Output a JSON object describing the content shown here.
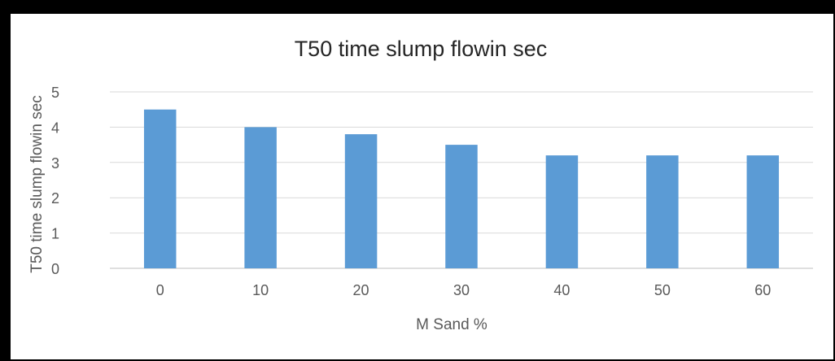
{
  "chart_data": {
    "type": "bar",
    "title": "T50 time slump flowin sec",
    "xlabel": "M Sand  %",
    "ylabel": "T50 time slump flowin sec",
    "categories": [
      "0",
      "10",
      "20",
      "30",
      "40",
      "50",
      "60"
    ],
    "values": [
      4.5,
      4.0,
      3.8,
      3.5,
      3.2,
      3.2,
      3.2
    ],
    "ylim": [
      0,
      5
    ],
    "yticks": [
      "0",
      "1",
      "2",
      "3",
      "4",
      "5"
    ],
    "grid": true,
    "legend": "none",
    "colors": {
      "bar": "#5B9BD5",
      "grid": "#D9D9D9",
      "axis": "#BFBFBF",
      "frame": "#000000"
    }
  }
}
